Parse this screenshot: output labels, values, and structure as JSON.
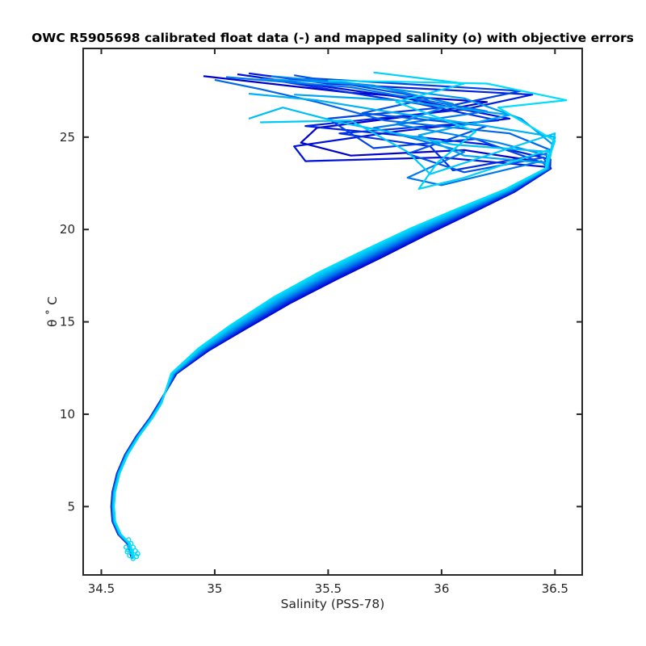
{
  "chart_data": {
    "type": "line",
    "title": "OWC R5905698 calibrated float data (-) and mapped salinity (o) with objective errors",
    "xlabel": "Salinity (PSS-78)",
    "ylabel": "θ ˚ C",
    "xlim": [
      34.42,
      36.62
    ],
    "ylim": [
      1.3,
      29.8
    ],
    "xticks": [
      34.5,
      35,
      35.5,
      36,
      36.5
    ],
    "yticks": [
      5,
      10,
      15,
      20,
      25
    ],
    "grid": false,
    "colormap": [
      "#0000cd",
      "#0022e0",
      "#0048e6",
      "#0070ea",
      "#0094ee",
      "#00b0f2",
      "#00c8f6",
      "#00dcfa"
    ],
    "profile_shape": {
      "description_free": true,
      "deep": [
        [
          34.64,
          2.2
        ],
        [
          34.62,
          3.0
        ],
        [
          34.58,
          3.5
        ],
        [
          34.555,
          4.2
        ],
        [
          34.55,
          5.0
        ],
        [
          34.555,
          5.8
        ],
        [
          34.575,
          6.8
        ],
        [
          34.61,
          7.8
        ],
        [
          34.66,
          8.8
        ],
        [
          34.72,
          9.8
        ],
        [
          34.76,
          10.6
        ]
      ],
      "thermocline": [
        [
          34.82,
          12.2
        ],
        [
          34.95,
          13.5
        ],
        [
          35.1,
          14.7
        ],
        [
          35.3,
          16.2
        ],
        [
          35.5,
          17.5
        ],
        [
          35.7,
          18.7
        ],
        [
          35.9,
          19.9
        ],
        [
          36.1,
          21.0
        ],
        [
          36.3,
          22.1
        ],
        [
          36.47,
          23.3
        ]
      ],
      "surface_region": {
        "sal_range": [
          34.95,
          36.5
        ],
        "theta_range": [
          23.3,
          28.5
        ]
      }
    },
    "series": [
      {
        "cycle": 1,
        "color": "#0000cd",
        "surface": [
          [
            36.47,
            23.6
          ],
          [
            36.1,
            24.3
          ],
          [
            35.6,
            24.0
          ],
          [
            35.38,
            24.7
          ],
          [
            35.45,
            25.5
          ],
          [
            35.9,
            26.2
          ],
          [
            36.2,
            26.9
          ],
          [
            35.6,
            27.4
          ],
          [
            34.95,
            28.3
          ]
        ]
      },
      {
        "cycle": 2,
        "color": "#0012d8",
        "surface": [
          [
            36.45,
            23.4
          ],
          [
            36.0,
            23.9
          ],
          [
            35.4,
            23.7
          ],
          [
            35.35,
            24.5
          ],
          [
            35.8,
            25.3
          ],
          [
            36.3,
            26.0
          ],
          [
            35.8,
            27.2
          ],
          [
            35.1,
            28.4
          ]
        ]
      },
      {
        "cycle": 3,
        "color": "#0020dd",
        "surface": [
          [
            36.48,
            23.8
          ],
          [
            36.2,
            24.6
          ],
          [
            35.9,
            25.0
          ],
          [
            35.4,
            25.6
          ],
          [
            36.1,
            26.5
          ],
          [
            36.4,
            27.3
          ],
          [
            35.5,
            27.9
          ],
          [
            35.15,
            28.45
          ]
        ]
      },
      {
        "cycle": 4,
        "color": "#0030e2",
        "surface": [
          [
            36.46,
            24.1
          ],
          [
            36.05,
            23.2
          ],
          [
            35.95,
            24.5
          ],
          [
            35.55,
            25.2
          ],
          [
            36.25,
            25.9
          ],
          [
            35.9,
            26.8
          ],
          [
            35.3,
            28.0
          ]
        ]
      },
      {
        "cycle": 5,
        "color": "#0042e5",
        "surface": [
          [
            36.47,
            23.5
          ],
          [
            36.15,
            24.9
          ],
          [
            35.7,
            24.4
          ],
          [
            35.5,
            26.0
          ],
          [
            36.0,
            26.6
          ],
          [
            36.35,
            27.5
          ],
          [
            35.4,
            28.2
          ]
        ]
      },
      {
        "cycle": 6,
        "color": "#0054e8",
        "surface": [
          [
            36.45,
            23.9
          ],
          [
            36.1,
            23.1
          ],
          [
            35.85,
            24.1
          ],
          [
            36.2,
            25.6
          ],
          [
            35.65,
            26.3
          ],
          [
            35.95,
            27.1
          ],
          [
            35.35,
            28.35
          ]
        ]
      },
      {
        "cycle": 7,
        "color": "#0066ea",
        "surface": [
          [
            36.48,
            24.3
          ],
          [
            36.3,
            25.2
          ],
          [
            35.75,
            25.9
          ],
          [
            35.45,
            26.9
          ],
          [
            35.2,
            27.6
          ],
          [
            35.0,
            28.1
          ]
        ]
      },
      {
        "cycle": 8,
        "color": "#0078ec",
        "surface": [
          [
            36.44,
            23.7
          ],
          [
            36.0,
            22.4
          ],
          [
            35.85,
            22.8
          ],
          [
            36.1,
            24.2
          ],
          [
            35.7,
            25.5
          ],
          [
            36.2,
            26.4
          ],
          [
            35.6,
            27.7
          ],
          [
            35.05,
            28.25
          ]
        ]
      },
      {
        "cycle": 9,
        "color": "#0088ee",
        "surface": [
          [
            36.47,
            24.0
          ],
          [
            36.25,
            24.7
          ],
          [
            35.8,
            25.7
          ],
          [
            36.05,
            26.8
          ],
          [
            35.7,
            27.8
          ],
          [
            35.25,
            28.3
          ]
        ]
      },
      {
        "cycle": 10,
        "color": "#0098f0",
        "surface": [
          [
            36.49,
            24.6
          ],
          [
            36.35,
            26.0
          ],
          [
            36.1,
            27.1
          ],
          [
            35.6,
            27.9
          ],
          [
            35.2,
            28.15
          ]
        ]
      },
      {
        "cycle": 11,
        "color": "#00a6f2",
        "surface": [
          [
            36.46,
            23.6
          ],
          [
            36.1,
            24.0
          ],
          [
            35.9,
            25.1
          ],
          [
            36.3,
            26.2
          ],
          [
            35.8,
            27.0
          ],
          [
            35.35,
            27.3
          ]
        ]
      },
      {
        "cycle": 12,
        "color": "#00b2f4",
        "surface": [
          [
            36.5,
            25.0
          ],
          [
            36.2,
            25.6
          ],
          [
            35.75,
            26.4
          ],
          [
            35.45,
            27.0
          ],
          [
            35.15,
            27.35
          ]
        ]
      },
      {
        "cycle": 13,
        "color": "#00bef6",
        "surface": [
          [
            36.48,
            24.2
          ],
          [
            36.05,
            24.6
          ],
          [
            35.55,
            25.8
          ],
          [
            35.3,
            26.6
          ],
          [
            35.15,
            26.0
          ]
        ]
      },
      {
        "cycle": 14,
        "color": "#00c8f8",
        "surface": [
          [
            36.5,
            25.2
          ],
          [
            36.3,
            24.4
          ],
          [
            35.95,
            23.0
          ],
          [
            35.85,
            24.2
          ],
          [
            35.6,
            25.9
          ],
          [
            35.2,
            25.8
          ]
        ]
      },
      {
        "cycle": 15,
        "color": "#00d2f9",
        "surface": [
          [
            36.47,
            24.3
          ],
          [
            36.1,
            22.8
          ],
          [
            35.9,
            22.2
          ],
          [
            35.98,
            23.6
          ],
          [
            36.15,
            25.3
          ],
          [
            35.8,
            26.9
          ],
          [
            36.1,
            27.9
          ],
          [
            35.7,
            28.5
          ]
        ]
      },
      {
        "cycle": 16,
        "color": "#00dcfa",
        "surface": [
          [
            36.5,
            24.8
          ],
          [
            36.25,
            26.6
          ],
          [
            36.55,
            27.0
          ],
          [
            36.2,
            27.9
          ],
          [
            35.8,
            28.0
          ],
          [
            35.5,
            28.05
          ]
        ]
      }
    ]
  }
}
